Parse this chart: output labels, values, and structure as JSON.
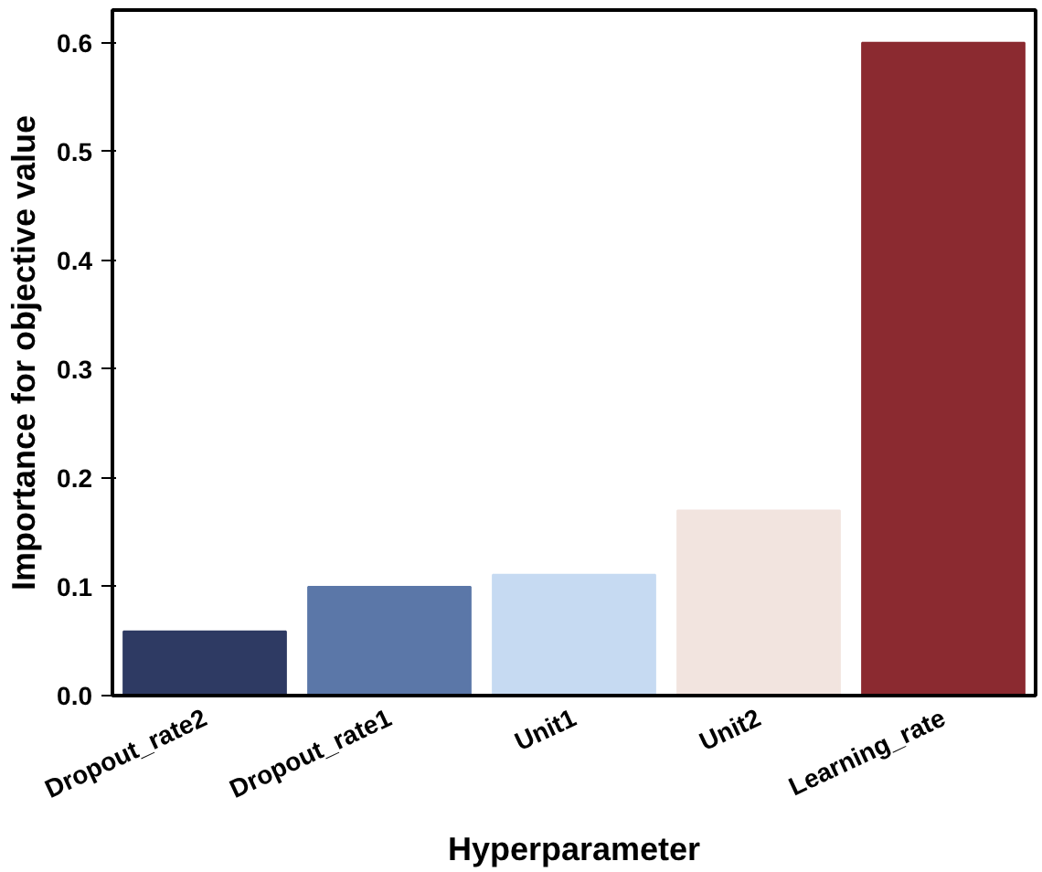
{
  "chart_data": {
    "type": "bar",
    "xlabel": "Hyperparameter",
    "ylabel": "Importance for objective value",
    "categories": [
      "Dropout_rate2",
      "Dropout_rate1",
      "Unit1",
      "Unit2",
      "Learning_rate"
    ],
    "values": [
      0.059,
      0.1,
      0.111,
      0.17,
      0.6
    ],
    "colors": [
      "#2e3a63",
      "#5b77a8",
      "#c6daf2",
      "#f2e4df",
      "#8b2a30"
    ],
    "ylim": [
      0,
      0.63
    ],
    "yticks": [
      {
        "value": 0,
        "label": "0.0"
      },
      0.1,
      0.2,
      0.3,
      0.4,
      0.5,
      0.6
    ],
    "grid": false
  }
}
